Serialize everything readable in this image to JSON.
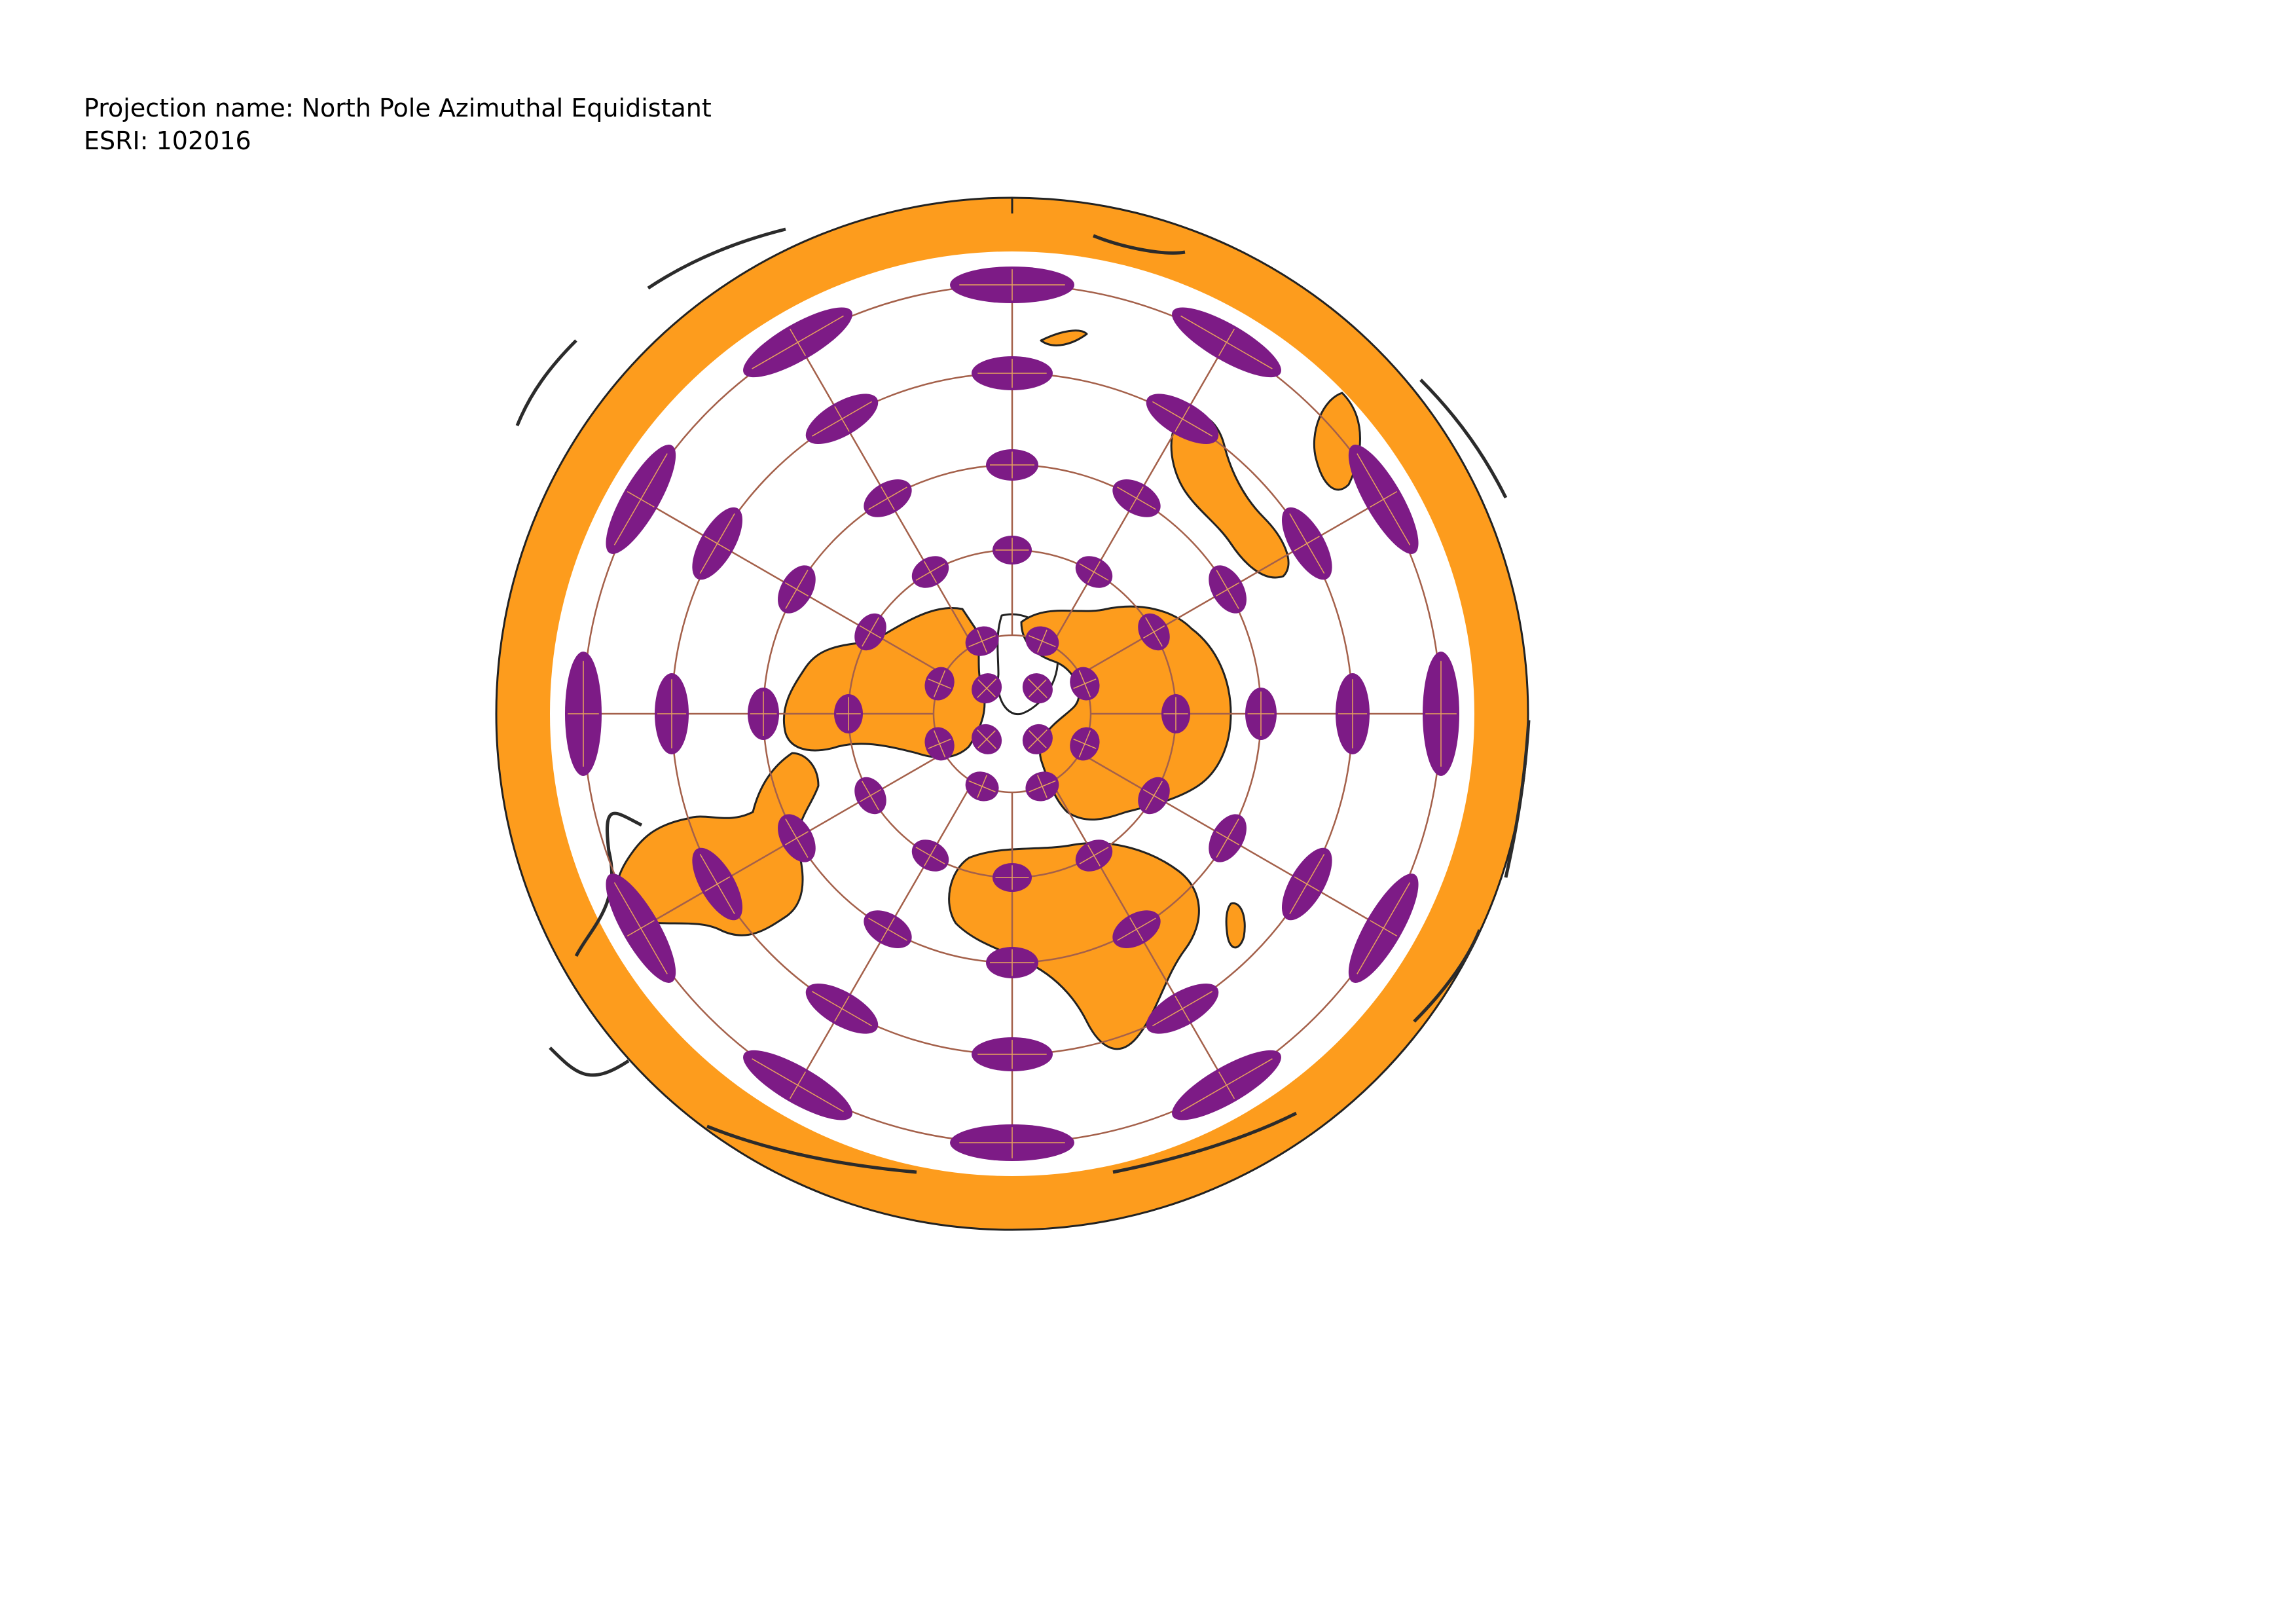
{
  "header": {
    "projection_line": "Projection name: North Pole Azimuthal Equidistant",
    "esri_line": "ESRI: 102016"
  },
  "colors": {
    "land": "#fd9c1d",
    "ellipse": "#7d1b86",
    "graticule": "#a4604a",
    "outline": "#222222",
    "background": "#ffffff",
    "axis_lines": "#e8a35c"
  },
  "map": {
    "projection": "North Pole Azimuthal Equidistant",
    "graticule_rings": 6,
    "meridians": 12,
    "indicatrix_ring_counts": [
      4,
      8,
      12,
      12,
      12,
      12
    ]
  }
}
